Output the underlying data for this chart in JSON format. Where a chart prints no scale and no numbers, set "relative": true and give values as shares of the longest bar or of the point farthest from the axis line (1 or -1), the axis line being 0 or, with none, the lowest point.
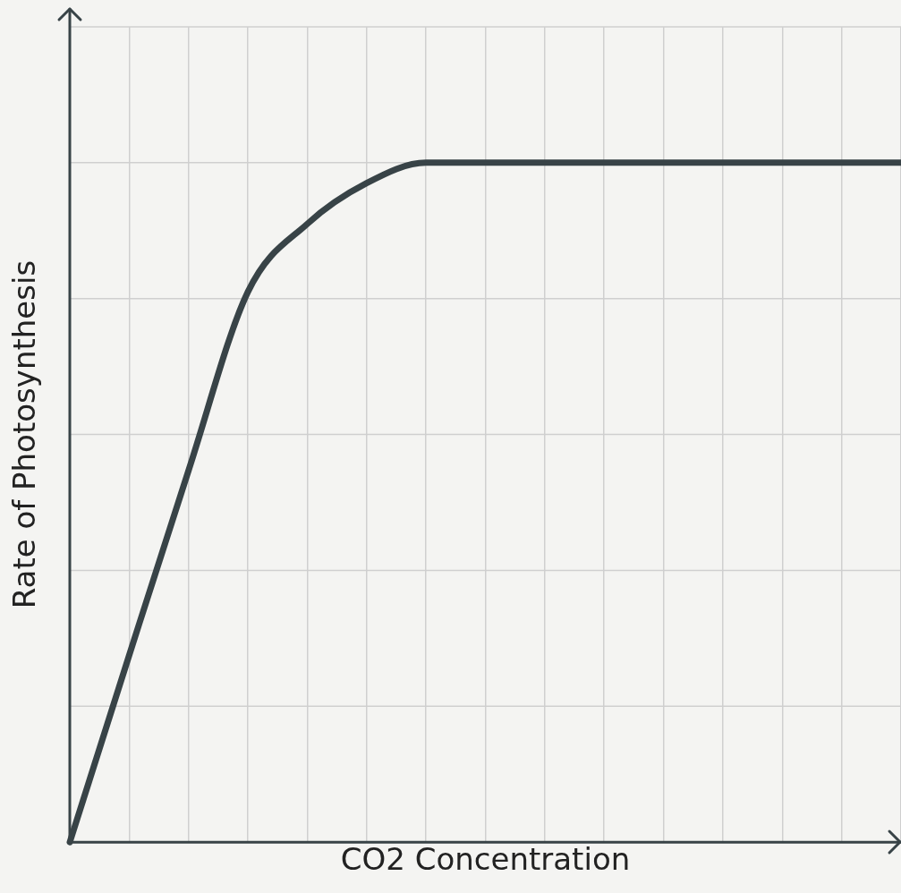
{
  "chart_data": {
    "type": "line",
    "relative": true,
    "xlabel": "CO2 Concentration",
    "ylabel": "Rate of Photosynthesis",
    "categories": [
      null,
      null,
      null,
      null,
      null,
      null,
      null,
      null,
      null,
      null,
      null,
      null,
      null,
      null,
      null
    ],
    "series": [
      {
        "color": "#384347",
        "values": [
          0,
          0.275,
          0.547,
          0.81,
          0.91,
          0.97,
          1,
          1,
          1,
          1,
          1,
          1,
          1,
          1,
          1
        ]
      }
    ],
    "grid": true,
    "legend": false,
    "tick_labels": false,
    "marker": "none",
    "line_style": "solid"
  }
}
